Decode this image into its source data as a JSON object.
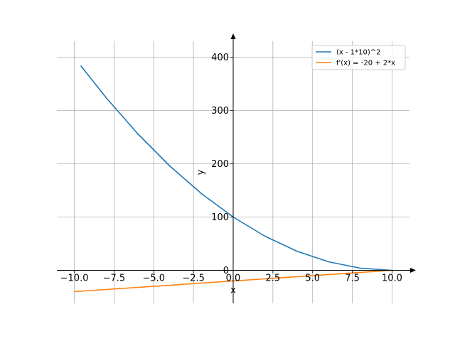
{
  "chart_data": {
    "type": "line",
    "xlabel": "x",
    "ylabel": "y",
    "xlim": [
      -11.1,
      11.1
    ],
    "ylim": [
      -62,
      430
    ],
    "grid": true,
    "legend_placement": "top-right",
    "x_ticks": [
      -10,
      -7.5,
      -5,
      -2.5,
      0,
      2.5,
      5,
      7.5,
      10
    ],
    "x_tick_labels": [
      "−10.0",
      "−7.5",
      "−5.0",
      "−2.5",
      "0.0",
      "2.5",
      "5.0",
      "7.5",
      "10.0"
    ],
    "y_ticks": [
      0,
      100,
      200,
      300,
      400
    ],
    "y_tick_labels": [
      "0",
      "100",
      "200",
      "300",
      "400"
    ],
    "series": [
      {
        "name": "(x - 1*10)^2",
        "color": "#1f77b4",
        "x": [
          -9.6,
          -8,
          -6,
          -4,
          -2,
          0,
          2,
          4,
          6,
          8,
          10
        ],
        "y": [
          384.2,
          324,
          256,
          196,
          144,
          100,
          64,
          36,
          16,
          4,
          0
        ]
      },
      {
        "name": "f'(x) = -20 + 2*x",
        "color": "#ff7f0e",
        "x": [
          -10,
          10
        ],
        "y": [
          -40,
          0
        ]
      }
    ]
  }
}
